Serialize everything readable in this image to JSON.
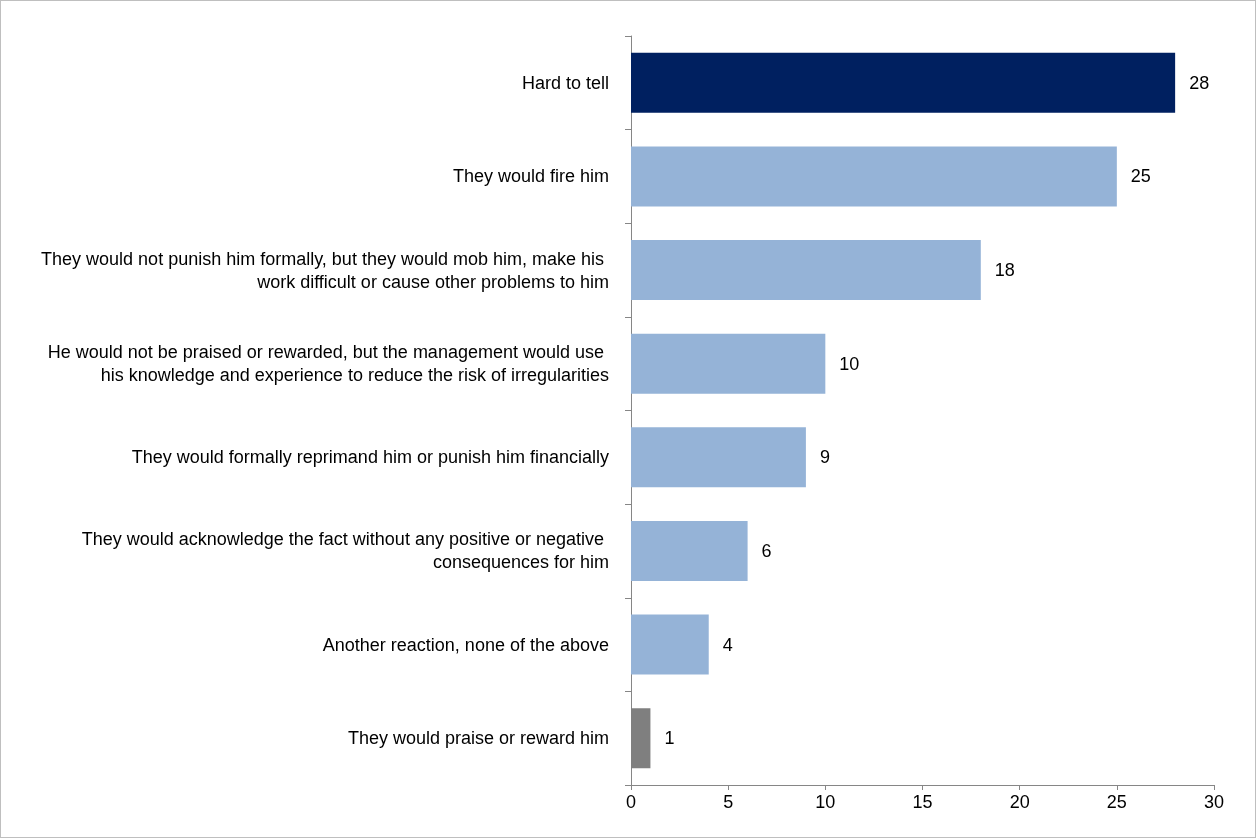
{
  "chart_data": {
    "type": "bar",
    "orientation": "horizontal",
    "categories": [
      "Hard to tell",
      "They would fire him",
      "They would not punish him formally, but they would mob him, make his work difficult or cause other problems to him",
      "He would not be praised or rewarded, but the management would use his knowledge and experience to reduce the risk of irregularities",
      "They would formally reprimand him or punish him financially",
      "They would acknowledge the fact without any positive or negative consequences for him",
      "Another reaction, none of the above",
      "They would praise or reward him"
    ],
    "values": [
      28,
      25,
      18,
      10,
      9,
      6,
      4,
      1
    ],
    "colors": [
      "#002060",
      "#95b3d7",
      "#95b3d7",
      "#95b3d7",
      "#95b3d7",
      "#95b3d7",
      "#95b3d7",
      "#7f7f7f"
    ],
    "xlim": [
      0,
      30
    ],
    "xticks": [
      0,
      5,
      10,
      15,
      20,
      25,
      30
    ],
    "grid": false,
    "data_labels": true
  }
}
